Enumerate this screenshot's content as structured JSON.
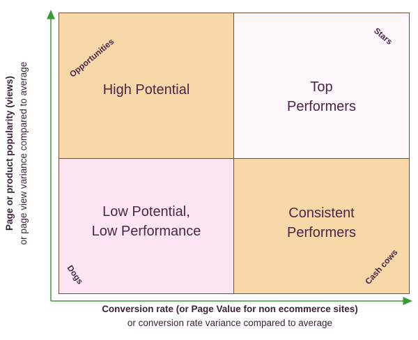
{
  "quadrants": {
    "top_left": {
      "title": "High Potential",
      "corner_label": "Opportunities"
    },
    "top_right": {
      "title": "Top\nPerformers",
      "corner_label": "Stars"
    },
    "bottom_left": {
      "title": "Low Potential,\nLow Performance",
      "corner_label": "Dogs"
    },
    "bottom_right": {
      "title": "Consistent\nPerformers",
      "corner_label": "Cash cows"
    }
  },
  "x_axis": {
    "title": "Conversion rate (or Page Value for non ecommerce sites)",
    "subtitle": "or conversion rate variance compared to average"
  },
  "y_axis": {
    "title": "Page or product popularity (views)",
    "subtitle": "or page view variance compared to average"
  },
  "colors": {
    "axis": "#3a9a3a",
    "border": "#7a4a2c",
    "peach": "#f8d7a8",
    "pink": "#fde6f4",
    "light": "#fdf7fb",
    "text": "#4a2547"
  }
}
